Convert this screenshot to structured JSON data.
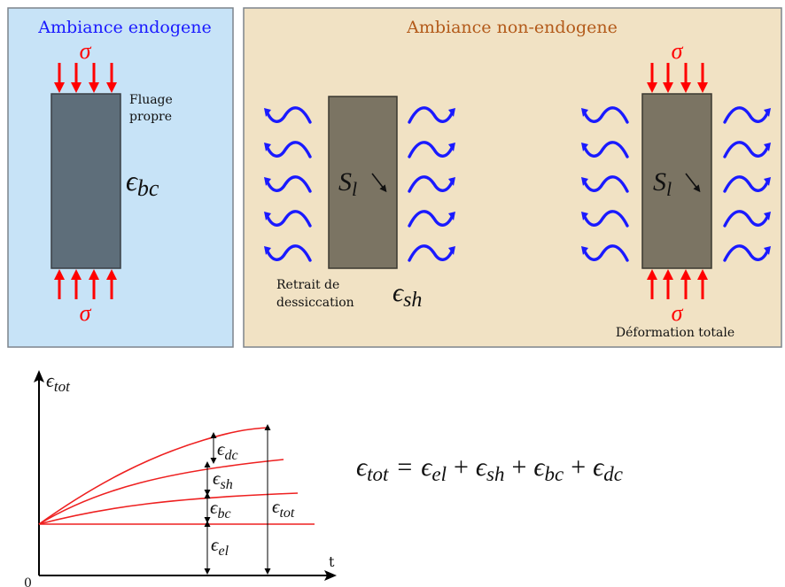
{
  "panel_endogenous": {
    "title": "Ambiance endogene",
    "sigma_top": "σ",
    "sigma_bottom": "σ",
    "creep_label_line1": "Fluage",
    "creep_label_line2": "propre",
    "strain_base": "ϵ",
    "strain_sub": "bc"
  },
  "panel_non_endogenous": {
    "title": "Ambiance non-endogene",
    "sample_left": {
      "symbol_base": "S",
      "symbol_sub": "l",
      "label_line1": "Retrait de",
      "label_line2": "dessiccation",
      "strain_base": "ϵ",
      "strain_sub": "sh"
    },
    "sample_right": {
      "symbol_base": "S",
      "symbol_sub": "l",
      "sigma_top": "σ",
      "sigma_bottom": "σ",
      "label": "Déformation totale"
    }
  },
  "strain_chart": {
    "y_axis_base": "ϵ",
    "y_axis_sub": "tot",
    "x_axis_label": "t",
    "origin_label": "0",
    "components": [
      {
        "base": "ϵ",
        "sub": "dc"
      },
      {
        "base": "ϵ",
        "sub": "sh"
      },
      {
        "base": "ϵ",
        "sub": "bc"
      },
      {
        "base": "ϵ",
        "sub": "el"
      }
    ],
    "total": {
      "base": "ϵ",
      "sub": "tot"
    }
  },
  "equation": {
    "lhs_base": "ϵ",
    "lhs_sub": "tot",
    "eq": "=",
    "plus": "+",
    "terms": [
      {
        "base": "ϵ",
        "sub": "el"
      },
      {
        "base": "ϵ",
        "sub": "sh"
      },
      {
        "base": "ϵ",
        "sub": "bc"
      },
      {
        "base": "ϵ",
        "sub": "dc"
      }
    ]
  },
  "colors": {
    "endogenous_bg": "#c7e3f7",
    "non_endogenous_bg": "#f1e2c4",
    "panel_border": "#7d848c",
    "sample_grey": "#5e6e7a",
    "sample_brown": "#7b7463",
    "stress_red": "#ff0000",
    "moisture_blue": "#1a1aff",
    "endogenous_title": "#1a1aff",
    "non_endogenous_title": "#b35a1a",
    "curve_red": "#ee2020"
  },
  "icons": {
    "stress_arrow": "red-down-up-arrow",
    "moisture_wave": "blue-wave-arrow",
    "diffusion_arrow": "small-diagonal-arrow"
  }
}
